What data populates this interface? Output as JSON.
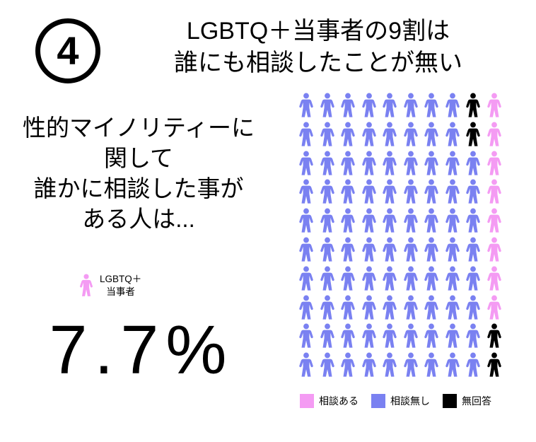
{
  "badge": {
    "number": "4"
  },
  "title": {
    "line1": "LGBTQ＋当事者の9割は",
    "line2": "誰にも相談したことが無い"
  },
  "intro": {
    "lines": [
      "性的マイノリティーに",
      "関して",
      "誰かに相談した事が",
      "ある人は..."
    ]
  },
  "subject": {
    "label_line1": "LGBTQ＋",
    "label_line2": "当事者",
    "icon_color": "#f49bf3"
  },
  "stat": {
    "value": "7.7%"
  },
  "chart_data": {
    "type": "pictogram",
    "title": "LGBTQ＋当事者の9割は誰にも相談したことが無い",
    "rows": 10,
    "cols": 10,
    "unit_per_icon_percent": 1,
    "categories": [
      "相談ある",
      "相談無し",
      "無回答"
    ],
    "icon_counts": [
      8,
      88,
      4
    ],
    "stated_percent_consulted": 7.7,
    "palette": {
      "P": "#f49bf3",
      "B": "#7a81f1",
      "K": "#000000"
    },
    "grid": [
      "BBBBBBBBKP",
      "BBBBBBBBKP",
      "BBBBBBBBBP",
      "BBBBBBBBBP",
      "BBBBBBBBBP",
      "BBBBBBBBBP",
      "BBBBBBBBBP",
      "BBBBBBBBBP",
      "BBBBBBBBBK",
      "BBBBBBBBBK"
    ],
    "legend": [
      {
        "label": "相談ある",
        "color": "#f49bf3"
      },
      {
        "label": "相談無し",
        "color": "#7a81f1"
      },
      {
        "label": "無回答",
        "color": "#000000"
      }
    ]
  }
}
